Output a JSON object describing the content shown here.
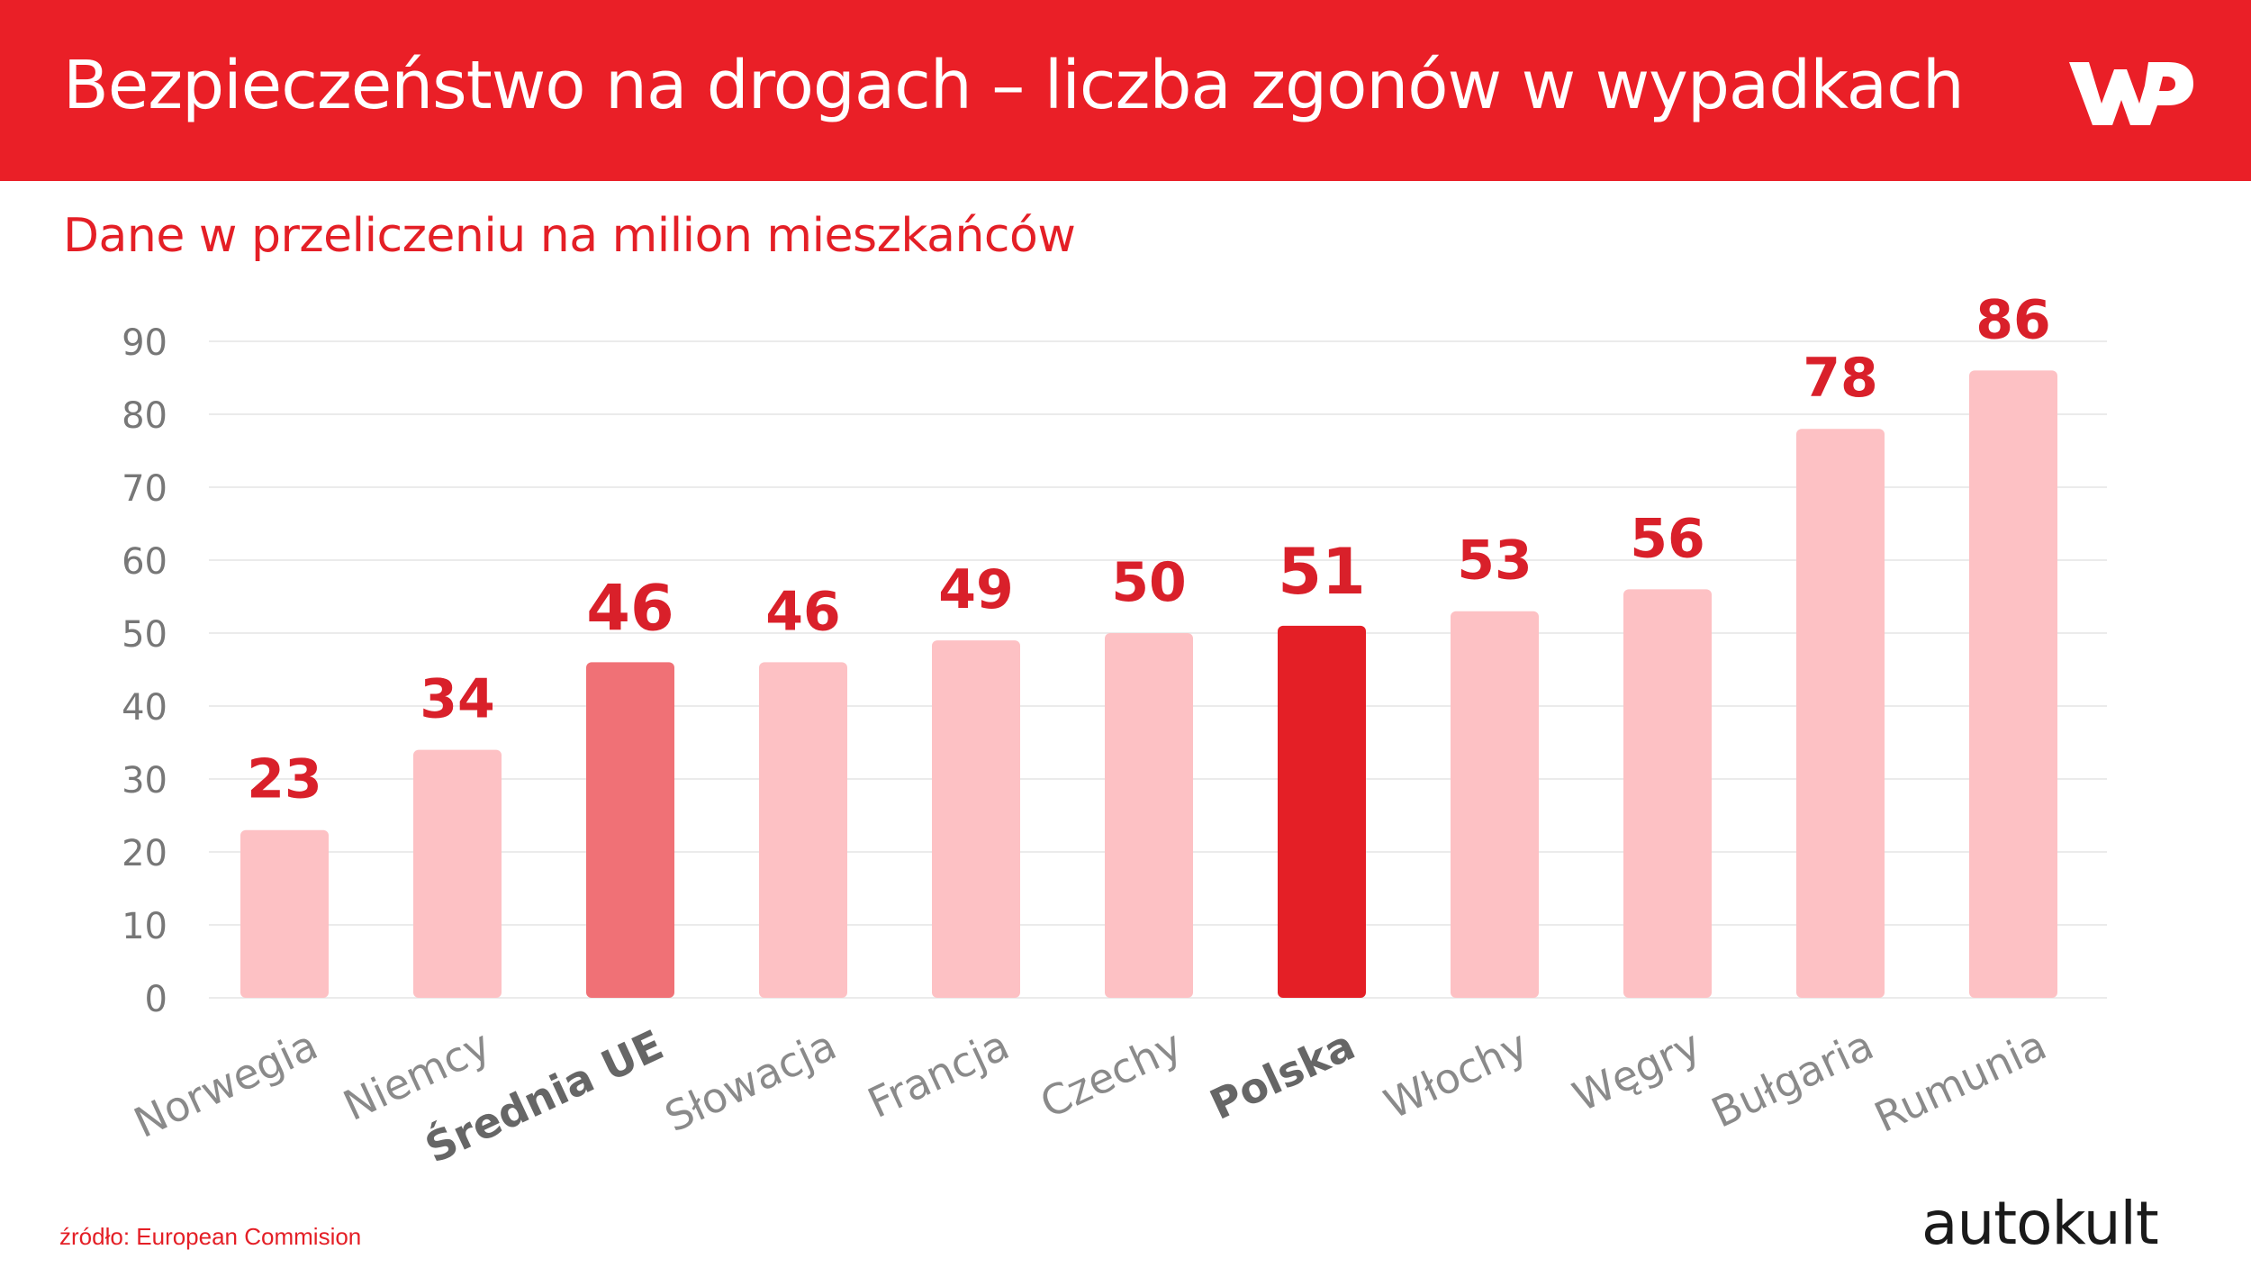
{
  "header": {
    "title": "Bezpieczeństwo na drogach – liczba zgonów w wypadkach",
    "logo": "WP"
  },
  "colors": {
    "header_bg": "#ea1f27",
    "bar_default": "#fdc1c4",
    "bar_eu": "#f07176",
    "bar_poland": "#e41f26",
    "value_label": "#d9202a",
    "tick_text": "#777777",
    "grid": "#ebebeb"
  },
  "chart_data": {
    "type": "bar",
    "title": "",
    "subtitle": "Dane w przeliczeniu na milion mieszkańców",
    "xlabel": "",
    "ylabel": "",
    "ylim": [
      0,
      90
    ],
    "yticks": [
      0,
      10,
      20,
      30,
      40,
      50,
      60,
      70,
      80,
      90
    ],
    "grid": true,
    "categories": [
      "Norwegia",
      "Niemcy",
      "Średnia UE",
      "Słowacja",
      "Francja",
      "Czechy",
      "Polska",
      "Włochy",
      "Węgry",
      "Bułgaria",
      "Rumunia"
    ],
    "values": [
      23,
      34,
      46,
      46,
      49,
      50,
      51,
      53,
      56,
      78,
      86
    ],
    "highlight": [
      "default",
      "default",
      "eu",
      "default",
      "default",
      "default",
      "poland",
      "default",
      "default",
      "default",
      "default"
    ]
  },
  "footer": {
    "source": "źródło: European Commision",
    "brand": "autokult"
  }
}
